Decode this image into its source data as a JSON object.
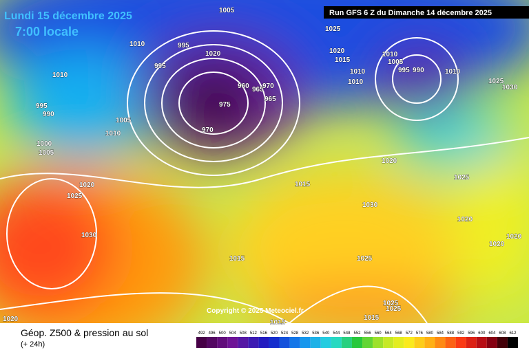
{
  "header": {
    "date": "Lundi 15 décembre 2025",
    "time": "7:00 locale",
    "run": "Run GFS 6 Z du Dimanche 14 décembre 2025"
  },
  "copyright": "Copyright © 2025 Meteociel.fr",
  "footer": {
    "title": "Géop. Z500 & pression au sol",
    "lead": "(+ 24h)"
  },
  "scale": {
    "labels": [
      492,
      496,
      500,
      504,
      508,
      512,
      516,
      520,
      524,
      528,
      532,
      536,
      540,
      544,
      548,
      552,
      556,
      560,
      564,
      568,
      572,
      576,
      580,
      584,
      588,
      592,
      596,
      600,
      604,
      608,
      612
    ]
  },
  "isobars": {
    "labels": [
      "1005",
      "1010",
      "995",
      "1020",
      "995",
      "1010",
      "995",
      "990",
      "1005",
      "1010",
      "1000",
      "1005",
      "970",
      "975",
      "960",
      "965",
      "970",
      "965",
      "1025",
      "1020",
      "1015",
      "1010",
      "1010",
      "1010",
      "1005",
      "995",
      "990",
      "1010",
      "1025",
      "1030",
      "1020",
      "1025",
      "1015",
      "1030",
      "1020",
      "1020",
      "1020",
      "1025",
      "1015",
      "1020",
      "1025",
      "1030",
      "1020",
      "1025",
      "1025",
      "1015",
      "1015"
    ]
  }
}
